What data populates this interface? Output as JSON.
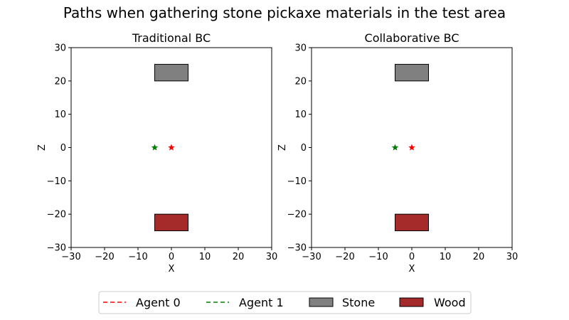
{
  "figure": {
    "title": "Paths when gathering stone pickaxe materials in the test area"
  },
  "chart_data": [
    {
      "type": "scatter",
      "title": "Traditional BC",
      "xlabel": "X",
      "ylabel": "Z",
      "xlim": [
        -30,
        30
      ],
      "ylim": [
        -30,
        30
      ],
      "xticks": [
        -30,
        -20,
        -10,
        0,
        10,
        20,
        30
      ],
      "yticks": [
        -30,
        -20,
        -10,
        0,
        10,
        20,
        30
      ],
      "grid": false,
      "series": [
        {
          "name": "Agent 0",
          "color": "#ff0000",
          "marker": "star",
          "start": [
            0,
            0
          ],
          "path": []
        },
        {
          "name": "Agent 1",
          "color": "#008000",
          "marker": "star",
          "start": [
            -5,
            0
          ],
          "path": []
        }
      ],
      "regions": [
        {
          "name": "Stone",
          "color": "#808080",
          "x": [
            -5,
            5
          ],
          "z": [
            20,
            25
          ]
        },
        {
          "name": "Wood",
          "color": "#a52a2a",
          "x": [
            -5,
            5
          ],
          "z": [
            -25,
            -20
          ]
        }
      ]
    },
    {
      "type": "scatter",
      "title": "Collaborative BC",
      "xlabel": "X",
      "ylabel": "Z",
      "xlim": [
        -30,
        30
      ],
      "ylim": [
        -30,
        30
      ],
      "xticks": [
        -30,
        -20,
        -10,
        0,
        10,
        20,
        30
      ],
      "yticks": [
        -30,
        -20,
        -10,
        0,
        10,
        20,
        30
      ],
      "grid": false,
      "series": [
        {
          "name": "Agent 0",
          "color": "#ff0000",
          "marker": "star",
          "start": [
            0,
            0
          ],
          "path": []
        },
        {
          "name": "Agent 1",
          "color": "#008000",
          "marker": "star",
          "start": [
            -5,
            0
          ],
          "path": []
        }
      ],
      "regions": [
        {
          "name": "Stone",
          "color": "#808080",
          "x": [
            -5,
            5
          ],
          "z": [
            20,
            25
          ]
        },
        {
          "name": "Wood",
          "color": "#a52a2a",
          "x": [
            -5,
            5
          ],
          "z": [
            -25,
            -20
          ]
        }
      ]
    }
  ],
  "legend": {
    "placement": "bottom-center",
    "items": [
      {
        "label": "Agent 0",
        "kind": "dashed-line",
        "color": "#ff0000"
      },
      {
        "label": "Agent 1",
        "kind": "dashed-line",
        "color": "#008000"
      },
      {
        "label": "Stone",
        "kind": "patch",
        "color": "#808080"
      },
      {
        "label": "Wood",
        "kind": "patch",
        "color": "#a52a2a"
      }
    ]
  }
}
